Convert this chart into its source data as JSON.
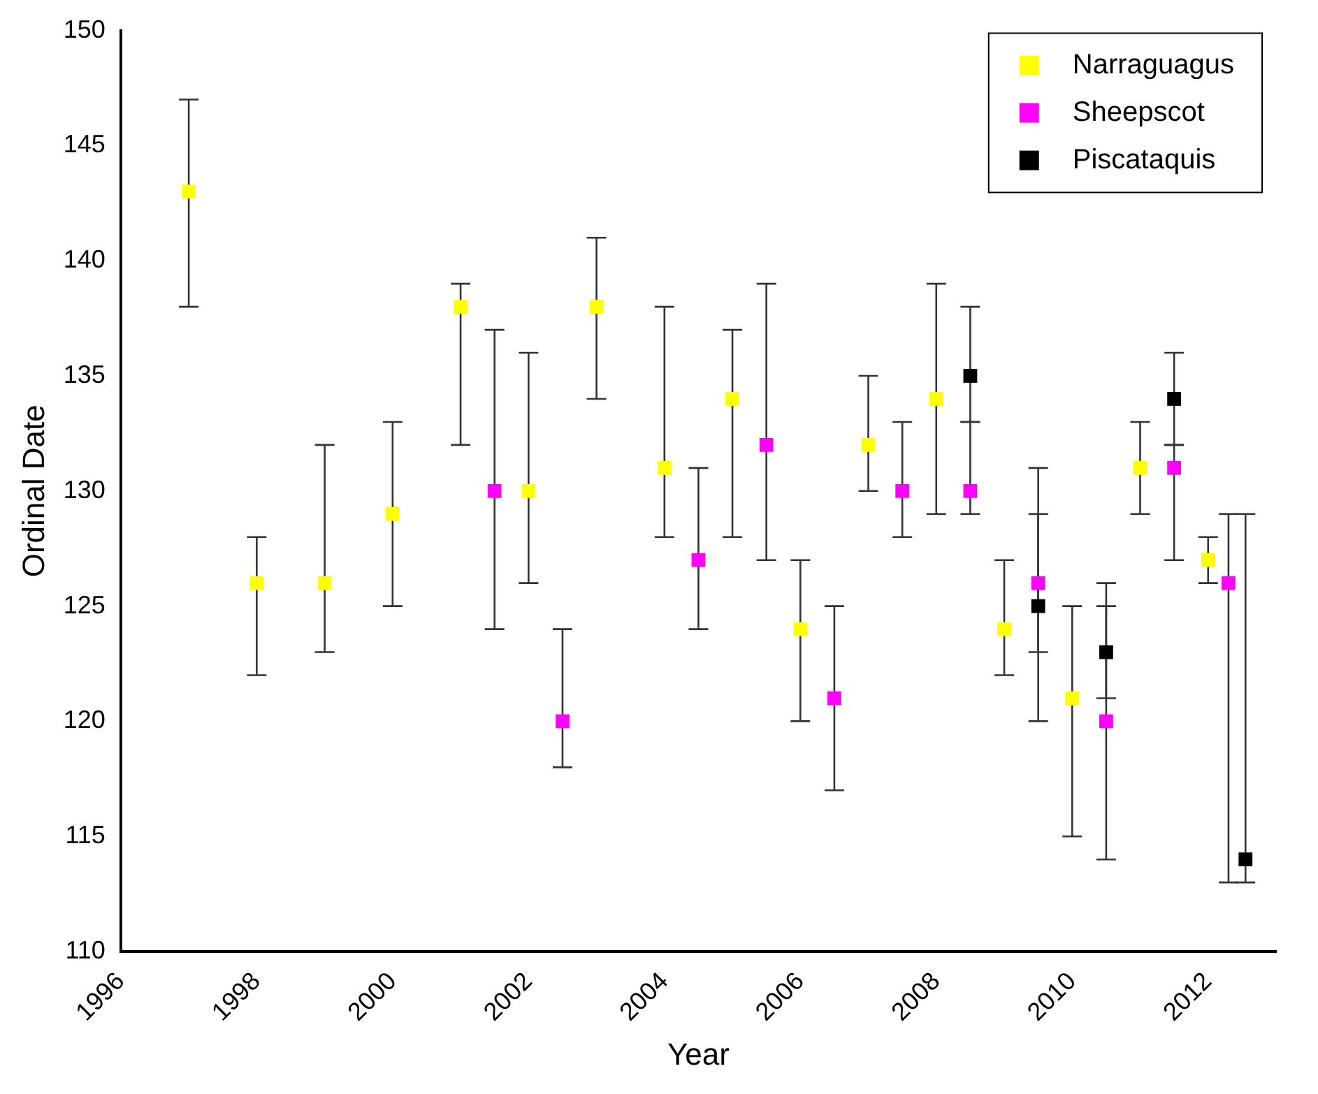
{
  "chart_data": {
    "type": "scatter",
    "xlabel": "Year",
    "ylabel": "Ordinal Date",
    "xlim": [
      1996,
      2013
    ],
    "xticks": [
      1996,
      1998,
      2000,
      2002,
      2004,
      2006,
      2008,
      2010,
      2012
    ],
    "ylim": [
      110,
      150
    ],
    "yticks": [
      110,
      115,
      120,
      125,
      130,
      135,
      140,
      145,
      150
    ],
    "grid": false,
    "legend": "top right",
    "marker": "square",
    "series": [
      {
        "name": "Narraguagus",
        "color": "#ffff00",
        "x": [
          1997,
          1998,
          1999,
          2000,
          2001,
          2002,
          2003,
          2004,
          2005,
          2006,
          2007,
          2008,
          2009,
          2010,
          2011,
          2012
        ],
        "values": [
          143,
          126,
          126,
          129,
          138,
          130,
          138,
          131,
          134,
          124,
          132,
          134,
          124,
          121,
          131,
          127
        ],
        "errors": [
          [
            138,
            147
          ],
          [
            122,
            128
          ],
          [
            123,
            132
          ],
          [
            125,
            133
          ],
          [
            132,
            139
          ],
          [
            126,
            136
          ],
          [
            134,
            141
          ],
          [
            128,
            138
          ],
          [
            128,
            137
          ],
          [
            120,
            127
          ],
          [
            130,
            135
          ],
          [
            129,
            139
          ],
          [
            122,
            127
          ],
          [
            115,
            125
          ],
          [
            129,
            133
          ],
          [
            126,
            128
          ]
        ]
      },
      {
        "name": "Sheepscot",
        "color": "#ff00ff",
        "x": [
          2001.5,
          2002.5,
          2004.5,
          2005.5,
          2006.5,
          2007.5,
          2008.5,
          2009.5,
          2010.5,
          2011.5,
          2012.3
        ],
        "values": [
          130,
          120,
          127,
          132,
          121,
          130,
          130,
          126,
          120,
          131,
          126
        ],
        "errors": [
          [
            124,
            137
          ],
          [
            118,
            124
          ],
          [
            124,
            131
          ],
          [
            127,
            139
          ],
          [
            117,
            125
          ],
          [
            128,
            133
          ],
          [
            129,
            133
          ],
          [
            120,
            131
          ],
          [
            114,
            125
          ],
          [
            127,
            132
          ],
          [
            113,
            129
          ]
        ]
      },
      {
        "name": "Piscataquis",
        "color": "#000000",
        "x": [
          2008.5,
          2009.5,
          2010.5,
          2011.5,
          2012.55
        ],
        "values": [
          135,
          125,
          123,
          134,
          114
        ],
        "errors": [
          [
            133,
            138
          ],
          [
            123,
            129
          ],
          [
            121,
            126
          ],
          [
            132,
            136
          ],
          [
            113,
            129
          ]
        ]
      }
    ]
  }
}
